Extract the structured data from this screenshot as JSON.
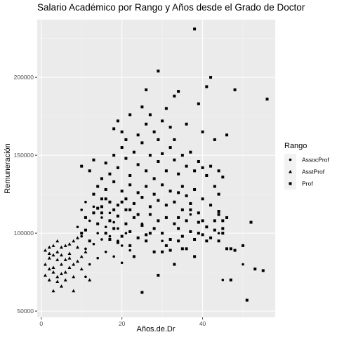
{
  "chart_data": {
    "type": "scatter",
    "title": "Salario Académico por Rango y Años desde el Grado de Doctor",
    "xlabel": "Años.de.Dr",
    "ylabel": "Remuneración",
    "xlim": [
      -1,
      58
    ],
    "ylim": [
      46000,
      237000
    ],
    "x_ticks": [
      0,
      20,
      40
    ],
    "y_ticks": [
      50000,
      100000,
      150000,
      200000
    ],
    "y_tick_labels": [
      "50000",
      "100000",
      "150000",
      "200000"
    ],
    "grid": true,
    "legend": {
      "title": "Rango",
      "placement": "right"
    },
    "series": [
      {
        "name": "AssocProf",
        "shape": "circle",
        "points": [
          [
            9,
            104000
          ],
          [
            10,
            98000
          ],
          [
            10,
            115000
          ],
          [
            11,
            90000
          ],
          [
            11,
            120000
          ],
          [
            12,
            108000
          ],
          [
            13,
            93000
          ],
          [
            13,
            117000
          ],
          [
            14,
            100000
          ],
          [
            14,
            84000
          ],
          [
            15,
            110000
          ],
          [
            15,
            96000
          ],
          [
            16,
            104000
          ],
          [
            16,
            88000
          ],
          [
            17,
            113000
          ],
          [
            17,
            98000
          ],
          [
            18,
            85000
          ],
          [
            18,
            107000
          ],
          [
            19,
            95000
          ],
          [
            19,
            103000
          ],
          [
            20,
            81000
          ],
          [
            20,
            92000
          ],
          [
            21,
            100000
          ],
          [
            22,
            89000
          ],
          [
            12,
            80000
          ],
          [
            11,
            72000
          ],
          [
            25,
            106000
          ],
          [
            30,
            95000
          ],
          [
            37,
            112000
          ],
          [
            45,
            70000
          ],
          [
            44,
            100000
          ],
          [
            50,
            80000
          ]
        ]
      },
      {
        "name": "AsstProf",
        "shape": "triangle",
        "points": [
          [
            1,
            89000
          ],
          [
            1,
            73000
          ],
          [
            1,
            80000
          ],
          [
            2,
            91000
          ],
          [
            2,
            77000
          ],
          [
            2,
            84000
          ],
          [
            2,
            70000
          ],
          [
            3,
            92000
          ],
          [
            3,
            78000
          ],
          [
            3,
            86000
          ],
          [
            3,
            63000
          ],
          [
            4,
            95000
          ],
          [
            4,
            83000
          ],
          [
            4,
            88000
          ],
          [
            4,
            72000
          ],
          [
            5,
            80000
          ],
          [
            5,
            86000
          ],
          [
            5,
            91000
          ],
          [
            5,
            66000
          ],
          [
            6,
            75000
          ],
          [
            6,
            83000
          ],
          [
            6,
            92000
          ],
          [
            7,
            87000
          ],
          [
            7,
            78000
          ],
          [
            7,
            93000
          ],
          [
            8,
            72000
          ],
          [
            8,
            80000
          ],
          [
            8,
            95000
          ],
          [
            9,
            82000
          ],
          [
            9,
            91000
          ],
          [
            10,
            77000
          ],
          [
            11,
            88000
          ],
          [
            3,
            75000
          ],
          [
            6,
            70000
          ],
          [
            8,
            63000
          ],
          [
            9,
            97000
          ],
          [
            10,
            85000
          ],
          [
            12,
            70000
          ],
          [
            5,
            74000
          ],
          [
            4,
            69000
          ],
          [
            2,
            87000
          ],
          [
            7,
            84000
          ]
        ]
      },
      {
        "name": "Prof",
        "shape": "square",
        "points": [
          [
            38,
            231000
          ],
          [
            29,
            204000
          ],
          [
            42,
            200000
          ],
          [
            48,
            192000
          ],
          [
            56,
            186000
          ],
          [
            26,
            192000
          ],
          [
            41,
            194000
          ],
          [
            33,
            188000
          ],
          [
            34,
            191000
          ],
          [
            31,
            180000
          ],
          [
            39,
            183000
          ],
          [
            22,
            176000
          ],
          [
            25,
            181000
          ],
          [
            27,
            176000
          ],
          [
            19,
            172000
          ],
          [
            18,
            167000
          ],
          [
            20,
            165000
          ],
          [
            21,
            160000
          ],
          [
            24,
            163000
          ],
          [
            26,
            170000
          ],
          [
            28,
            165000
          ],
          [
            30,
            172000
          ],
          [
            32,
            168000
          ],
          [
            36,
            170000
          ],
          [
            40,
            165000
          ],
          [
            43,
            160000
          ],
          [
            46,
            163000
          ],
          [
            10,
            143000
          ],
          [
            12,
            140000
          ],
          [
            13,
            147000
          ],
          [
            15,
            135000
          ],
          [
            16,
            145000
          ],
          [
            17,
            138000
          ],
          [
            18,
            150000
          ],
          [
            19,
            142000
          ],
          [
            20,
            155000
          ],
          [
            21,
            148000
          ],
          [
            22,
            137000
          ],
          [
            23,
            152000
          ],
          [
            24,
            144000
          ],
          [
            25,
            158000
          ],
          [
            26,
            140000
          ],
          [
            27,
            150000
          ],
          [
            28,
            135000
          ],
          [
            29,
            146000
          ],
          [
            30,
            151000
          ],
          [
            31,
            140000
          ],
          [
            32,
            155000
          ],
          [
            33,
            147000
          ],
          [
            34,
            138000
          ],
          [
            35,
            150000
          ],
          [
            36,
            143000
          ],
          [
            37,
            152000
          ],
          [
            38,
            140000
          ],
          [
            39,
            146000
          ],
          [
            40,
            142000
          ],
          [
            41,
            137000
          ],
          [
            42,
            143000
          ],
          [
            44,
            140000
          ],
          [
            45,
            136000
          ],
          [
            13,
            125000
          ],
          [
            14,
            130000
          ],
          [
            15,
            122000
          ],
          [
            16,
            128000
          ],
          [
            17,
            120000
          ],
          [
            18,
            133000
          ],
          [
            19,
            118000
          ],
          [
            20,
            127000
          ],
          [
            21,
            122000
          ],
          [
            22,
            131000
          ],
          [
            23,
            119000
          ],
          [
            24,
            126000
          ],
          [
            25,
            123000
          ],
          [
            26,
            130000
          ],
          [
            27,
            117000
          ],
          [
            28,
            125000
          ],
          [
            29,
            121000
          ],
          [
            30,
            131000
          ],
          [
            31,
            118000
          ],
          [
            32,
            127000
          ],
          [
            33,
            120000
          ],
          [
            34,
            126000
          ],
          [
            35,
            115000
          ],
          [
            36,
            124000
          ],
          [
            37,
            119000
          ],
          [
            38,
            128000
          ],
          [
            39,
            113000
          ],
          [
            40,
            122000
          ],
          [
            42,
            118000
          ],
          [
            43,
            108000
          ],
          [
            44,
            114000
          ],
          [
            46,
            110000
          ],
          [
            14,
            106000
          ],
          [
            15,
            113000
          ],
          [
            16,
            100000
          ],
          [
            17,
            108000
          ],
          [
            18,
            103000
          ],
          [
            19,
            111000
          ],
          [
            20,
            98000
          ],
          [
            21,
            106000
          ],
          [
            22,
            101000
          ],
          [
            23,
            110000
          ],
          [
            24,
            97000
          ],
          [
            25,
            105000
          ],
          [
            26,
            99000
          ],
          [
            27,
            112000
          ],
          [
            28,
            103000
          ],
          [
            29,
            108000
          ],
          [
            30,
            100000
          ],
          [
            31,
            110000
          ],
          [
            32,
            96000
          ],
          [
            33,
            106000
          ],
          [
            34,
            103000
          ],
          [
            35,
            98000
          ],
          [
            36,
            108000
          ],
          [
            37,
            101000
          ],
          [
            38,
            96000
          ],
          [
            39,
            107000
          ],
          [
            40,
            99000
          ],
          [
            41,
            104000
          ],
          [
            42,
            97000
          ],
          [
            43,
            102000
          ],
          [
            44,
            95000
          ],
          [
            45,
            100000
          ],
          [
            46,
            90000
          ],
          [
            47,
            90000
          ],
          [
            48,
            89000
          ],
          [
            52,
            107000
          ],
          [
            53,
            77000
          ],
          [
            55,
            76000
          ],
          [
            51,
            57000
          ],
          [
            47,
            70000
          ],
          [
            50,
            92000
          ],
          [
            25,
            62000
          ],
          [
            29,
            73000
          ],
          [
            33,
            80000
          ],
          [
            35,
            90000
          ],
          [
            38,
            85000
          ],
          [
            41,
            95000
          ],
          [
            22,
            92000
          ],
          [
            23,
            85000
          ],
          [
            26,
            95000
          ],
          [
            28,
            88000
          ],
          [
            31,
            92000
          ],
          [
            34,
            95000
          ],
          [
            36,
            90000
          ],
          [
            19,
            94000
          ],
          [
            12,
            95000
          ],
          [
            11,
            110000
          ],
          [
            10,
            100000
          ],
          [
            20,
            120000
          ],
          [
            21,
            115000
          ],
          [
            24,
            112000
          ],
          [
            27,
            100000
          ],
          [
            30,
            88000
          ],
          [
            32,
            89000
          ],
          [
            34,
            110000
          ],
          [
            37,
            115000
          ],
          [
            39,
            100000
          ],
          [
            40,
            108000
          ],
          [
            43,
            130000
          ],
          [
            44,
            112000
          ],
          [
            29,
            160000
          ],
          [
            35,
            130000
          ],
          [
            33,
            160000
          ],
          [
            22,
            115000
          ],
          [
            17,
            96000
          ],
          [
            15,
            117000
          ],
          [
            18,
            115000
          ],
          [
            16,
            122000
          ],
          [
            14,
            116000
          ],
          [
            13,
            113000
          ],
          [
            11,
            102000
          ],
          [
            44,
            125000
          ],
          [
            45,
            108000
          ],
          [
            45,
            103000
          ]
        ]
      }
    ]
  }
}
